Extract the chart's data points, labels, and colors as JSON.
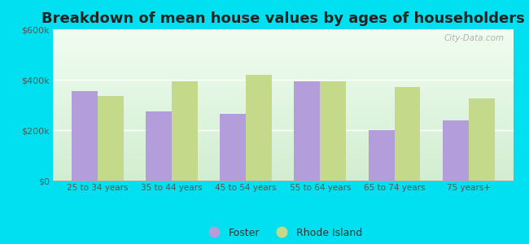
{
  "title": "Breakdown of mean house values by ages of householders",
  "categories": [
    "25 to 34 years",
    "35 to 44 years",
    "45 to 54 years",
    "55 to 64 years",
    "65 to 74 years",
    "75 years+"
  ],
  "foster_values": [
    355000,
    275000,
    265000,
    395000,
    200000,
    240000
  ],
  "rhodeisland_values": [
    335000,
    395000,
    420000,
    395000,
    370000,
    325000
  ],
  "foster_color": "#b39ddb",
  "rhodeisland_color": "#c5d98a",
  "background_outer": "#00e0f0",
  "title_fontsize": 13,
  "ylim": [
    0,
    600000
  ],
  "yticks": [
    0,
    200000,
    400000,
    600000
  ],
  "ytick_labels": [
    "$0",
    "$200k",
    "$400k",
    "$600k"
  ],
  "legend_labels": [
    "Foster",
    "Rhode Island"
  ],
  "watermark": "City-Data.com"
}
